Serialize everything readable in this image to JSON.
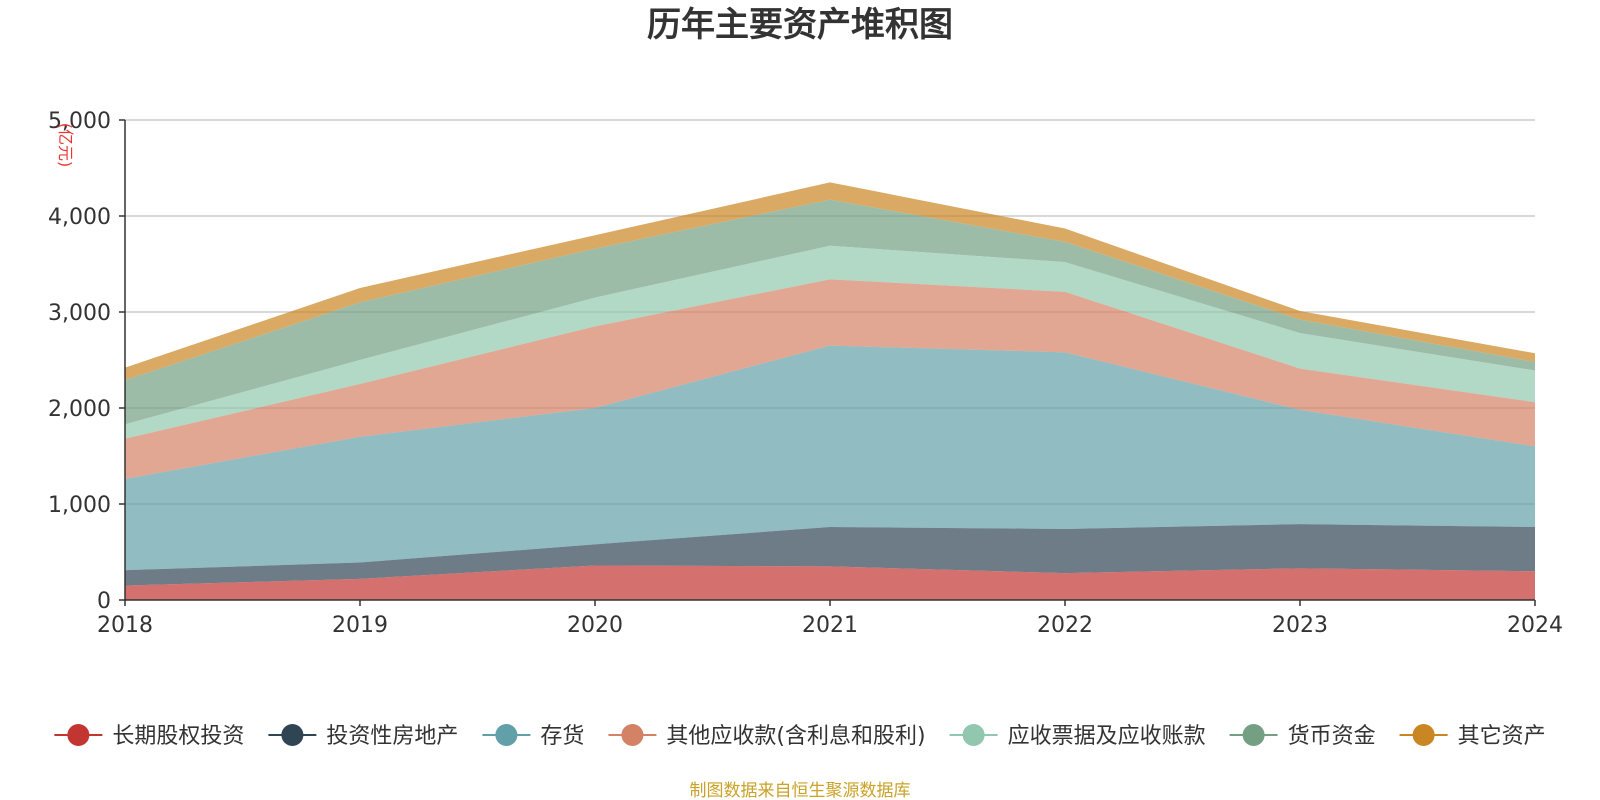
{
  "chart_data": {
    "type": "area",
    "stacked": true,
    "title": "历年主要资产堆积图",
    "unit_label": "(亿元)",
    "x": [
      "2018",
      "2019",
      "2020",
      "2021",
      "2022",
      "2023",
      "2024"
    ],
    "ylim": [
      0,
      5000
    ],
    "yticks": [
      0,
      1000,
      2000,
      3000,
      4000,
      5000
    ],
    "ytick_labels": [
      "0",
      "1,000",
      "2,000",
      "3,000",
      "4,000",
      "5,000"
    ],
    "grid": true,
    "legend_position": "bottom",
    "series": [
      {
        "name": "长期股权投资",
        "color": "#c23531",
        "values": [
          150,
          220,
          360,
          350,
          280,
          330,
          300
        ]
      },
      {
        "name": "投资性房地产",
        "color": "#2f4554",
        "values": [
          160,
          170,
          220,
          410,
          460,
          460,
          460
        ]
      },
      {
        "name": "存货",
        "color": "#61a0a8",
        "values": [
          950,
          1310,
          1420,
          1890,
          1840,
          1190,
          840
        ]
      },
      {
        "name": "其他应收款(含利息和股利)",
        "color": "#d48265",
        "values": [
          420,
          550,
          850,
          690,
          630,
          430,
          460
        ]
      },
      {
        "name": "应收票据及应收账款",
        "color": "#91c7ae",
        "values": [
          150,
          250,
          300,
          350,
          310,
          370,
          330
        ]
      },
      {
        "name": "货币资金",
        "color": "#749f83",
        "values": [
          460,
          600,
          510,
          480,
          210,
          140,
          90
        ]
      },
      {
        "name": "其它资产",
        "color": "#ca8622",
        "values": [
          130,
          150,
          140,
          180,
          140,
          90,
          90
        ]
      }
    ],
    "source_note": "制图数据来自恒生聚源数据库"
  }
}
